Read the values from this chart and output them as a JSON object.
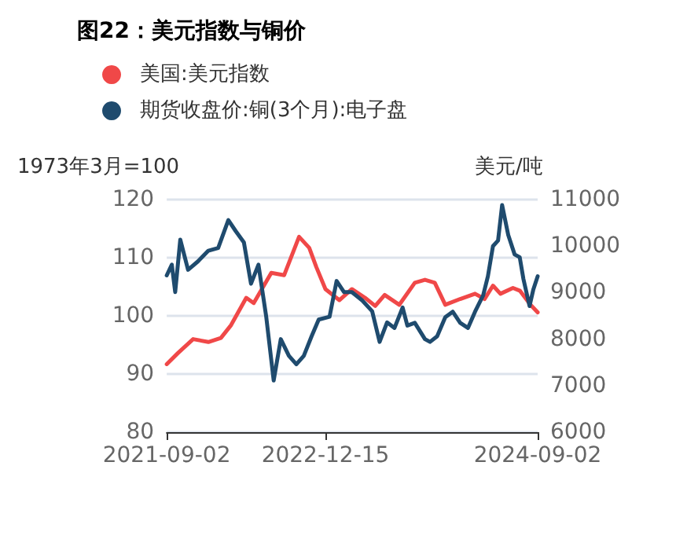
{
  "chart_data": {
    "type": "line",
    "title": "图22：美元指数与铜价",
    "ylabel": "1973年3月=100",
    "y2label": "美元/吨",
    "xlim": [
      "2021-09-02",
      "2024-09-02"
    ],
    "xticks": [
      "2021-09-02",
      "2022-12-15",
      "2024-09-02"
    ],
    "ylim": [
      80,
      120
    ],
    "yticks": [
      80,
      90,
      100,
      110,
      120
    ],
    "y2lim": [
      6000,
      11000
    ],
    "y2ticks": [
      6000,
      7000,
      8000,
      9000,
      10000,
      11000
    ],
    "grid": "y",
    "legend": "top left",
    "marker": "none",
    "line_style": "solid",
    "series": [
      {
        "name": "美国:美元指数",
        "color": "#f04848",
        "x": [
          "2021-09-02",
          "2021-10-05",
          "2021-11-19",
          "2022-01-03",
          "2022-02-09",
          "2022-03-11",
          "2022-04-25",
          "2022-05-17",
          "2022-07-08",
          "2022-08-15",
          "2022-09-28",
          "2022-10-28",
          "2022-11-18",
          "2022-12-15",
          "2023-01-25",
          "2023-03-03",
          "2023-04-11",
          "2023-05-11",
          "2023-06-08",
          "2023-07-21",
          "2023-09-05",
          "2023-10-05",
          "2023-11-03",
          "2023-12-04",
          "2024-01-17",
          "2024-03-01",
          "2024-03-29",
          "2024-04-23",
          "2024-05-15",
          "2024-06-21",
          "2024-07-12",
          "2024-08-12",
          "2024-09-02"
        ],
        "values": [
          91.7,
          93.6,
          96,
          95.5,
          96.2,
          98.4,
          103.1,
          102.2,
          107.4,
          107,
          113.6,
          111.7,
          108.4,
          104.6,
          102.7,
          104.6,
          103.1,
          101.7,
          103.6,
          101.9,
          105.7,
          106.2,
          105.7,
          101.9,
          102.9,
          103.8,
          102.9,
          105.2,
          103.8,
          104.8,
          104.3,
          101.9,
          100.6
        ]
      },
      {
        "name": "期货收盘价:铜(3个月):电子盘",
        "color": "#1f4b6e",
        "axis": "y2",
        "x": [
          "2021-09-02",
          "2021-09-17",
          "2021-09-27",
          "2021-10-12",
          "2021-11-04",
          "2021-12-03",
          "2022-01-03",
          "2022-02-01",
          "2022-03-03",
          "2022-03-25",
          "2022-04-18",
          "2022-05-09",
          "2022-05-31",
          "2022-06-23",
          "2022-07-15",
          "2022-08-05",
          "2022-08-29",
          "2022-09-20",
          "2022-10-12",
          "2022-11-04",
          "2022-11-25",
          "2022-12-27",
          "2023-01-17",
          "2023-02-08",
          "2023-03-03",
          "2023-04-03",
          "2023-05-02",
          "2023-05-24",
          "2023-06-15",
          "2023-07-07",
          "2023-07-31",
          "2023-08-14",
          "2023-09-05",
          "2023-10-05",
          "2023-10-20",
          "2023-11-10",
          "2023-12-04",
          "2023-12-26",
          "2024-01-17",
          "2024-02-09",
          "2024-03-01",
          "2024-03-25",
          "2024-04-08",
          "2024-04-23",
          "2024-05-08",
          "2024-05-20",
          "2024-06-07",
          "2024-06-26",
          "2024-07-11",
          "2024-07-22",
          "2024-08-09",
          "2024-08-20",
          "2024-09-02"
        ],
        "values": [
          9370,
          9600,
          9010,
          10140,
          9490,
          9670,
          9900,
          9960,
          10560,
          10320,
          10080,
          9190,
          9600,
          8480,
          7110,
          8000,
          7640,
          7460,
          7640,
          8060,
          8420,
          8480,
          9250,
          9010,
          9010,
          8830,
          8600,
          7940,
          8360,
          8240,
          8680,
          8290,
          8350,
          8000,
          7940,
          8060,
          8470,
          8590,
          8350,
          8240,
          8590,
          8940,
          9350,
          10000,
          10120,
          10880,
          10240,
          9820,
          9760,
          9290,
          8710,
          9060,
          9350
        ]
      }
    ]
  }
}
